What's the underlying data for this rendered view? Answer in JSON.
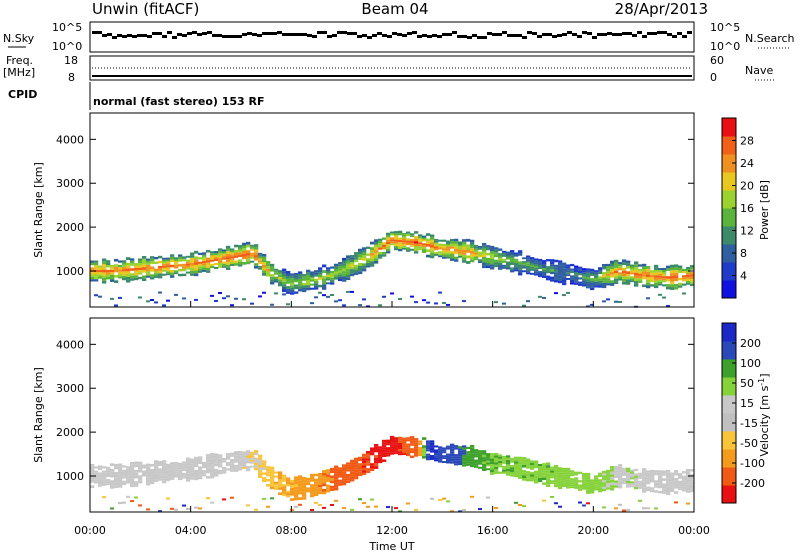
{
  "header": {
    "left": "Unwin (fitACF)",
    "center": "Beam 04",
    "right": "28/Apr/2013"
  },
  "status_panel": {
    "nsky_label": "N.Sky",
    "nsky_ticks": [
      "10^5",
      "10^0"
    ],
    "nsearch_label": "N.Search",
    "nsearch_ticks": [
      "10^5",
      "10^0"
    ],
    "freq_label_1": "Freq.",
    "freq_label_2": "[MHz]",
    "freq_ticks": [
      "18",
      "8"
    ],
    "nave_label": "Nave",
    "nave_ticks": [
      "60",
      "0"
    ],
    "cpid_label": "CPID",
    "cpid_text": "normal (fast stereo) 153 RF"
  },
  "colors": {
    "power_scale": [
      "#1010e0",
      "#1e3cc8",
      "#2f5f9e",
      "#3b8a6a",
      "#5ab43c",
      "#9ad22e",
      "#e8c820",
      "#f09020",
      "#f06018",
      "#e81010"
    ],
    "velocity_scale": [
      "#e81010",
      "#f05a14",
      "#f49a1c",
      "#f8c43a",
      "#c0c0c0",
      "#c8c8c8",
      "#86d23a",
      "#3ca02a",
      "#2a48b8",
      "#1a28c8"
    ]
  },
  "chart_data": [
    {
      "type": "heatmap",
      "panel": "power",
      "xlabel": "Time UT",
      "ylabel": "Slant Range [km]",
      "x_ticks": [
        "00:00",
        "04:00",
        "08:00",
        "12:00",
        "16:00",
        "20:00",
        "00:00"
      ],
      "xlim_hours": [
        0,
        24
      ],
      "y_ticks": [
        1000,
        2000,
        3000,
        4000
      ],
      "ylim": [
        180,
        4600
      ],
      "colorbar_label": "Power [dB]",
      "colorbar_ticks": [
        4,
        8,
        12,
        16,
        20,
        24,
        28
      ],
      "colorbar_range": [
        0,
        32
      ],
      "series": [
        {
          "hours": [
            0,
            1,
            2,
            3,
            4,
            5,
            6,
            6.5,
            7,
            7.5,
            8,
            9,
            10,
            11,
            12,
            13,
            14,
            15,
            16,
            17,
            18,
            19,
            20,
            21,
            22,
            23,
            24
          ],
          "range_center": [
            1000,
            1000,
            1050,
            1100,
            1150,
            1250,
            1350,
            1400,
            1050,
            850,
            700,
            800,
            1000,
            1300,
            1700,
            1650,
            1500,
            1450,
            1300,
            1200,
            1050,
            950,
            800,
            1000,
            900,
            850,
            900
          ],
          "power_db": [
            26,
            25,
            26,
            27,
            26,
            27,
            27,
            27,
            22,
            18,
            16,
            18,
            18,
            22,
            27,
            28,
            26,
            24,
            18,
            14,
            12,
            10,
            14,
            26,
            26,
            27,
            28
          ]
        }
      ]
    },
    {
      "type": "heatmap",
      "panel": "velocity",
      "xlabel": "Time UT",
      "ylabel": "Slant Range [km]",
      "x_ticks": [
        "00:00",
        "04:00",
        "08:00",
        "12:00",
        "16:00",
        "20:00",
        "00:00"
      ],
      "xlim_hours": [
        0,
        24
      ],
      "y_ticks": [
        1000,
        2000,
        3000,
        4000
      ],
      "ylim": [
        180,
        4600
      ],
      "colorbar_label": "Velocity [m s^-1]",
      "colorbar_label_main": "Velocity [m s",
      "colorbar_label_sup": "-1",
      "colorbar_label_end": "]",
      "colorbar_ticks": [
        -200,
        -100,
        -50,
        -15,
        15,
        50,
        100,
        200
      ],
      "colorbar_range": [
        -250,
        250
      ],
      "series": [
        {
          "hours": [
            0,
            2,
            4,
            6,
            8,
            9,
            10,
            11,
            12,
            13,
            13.5,
            14,
            15,
            16,
            17,
            18,
            19,
            20,
            21,
            22,
            24
          ],
          "velocity_ms": [
            0,
            0,
            0,
            0,
            -60,
            -80,
            -120,
            -200,
            -230,
            -150,
            220,
            180,
            80,
            50,
            40,
            40,
            30,
            30,
            10,
            0,
            0
          ]
        }
      ]
    }
  ]
}
